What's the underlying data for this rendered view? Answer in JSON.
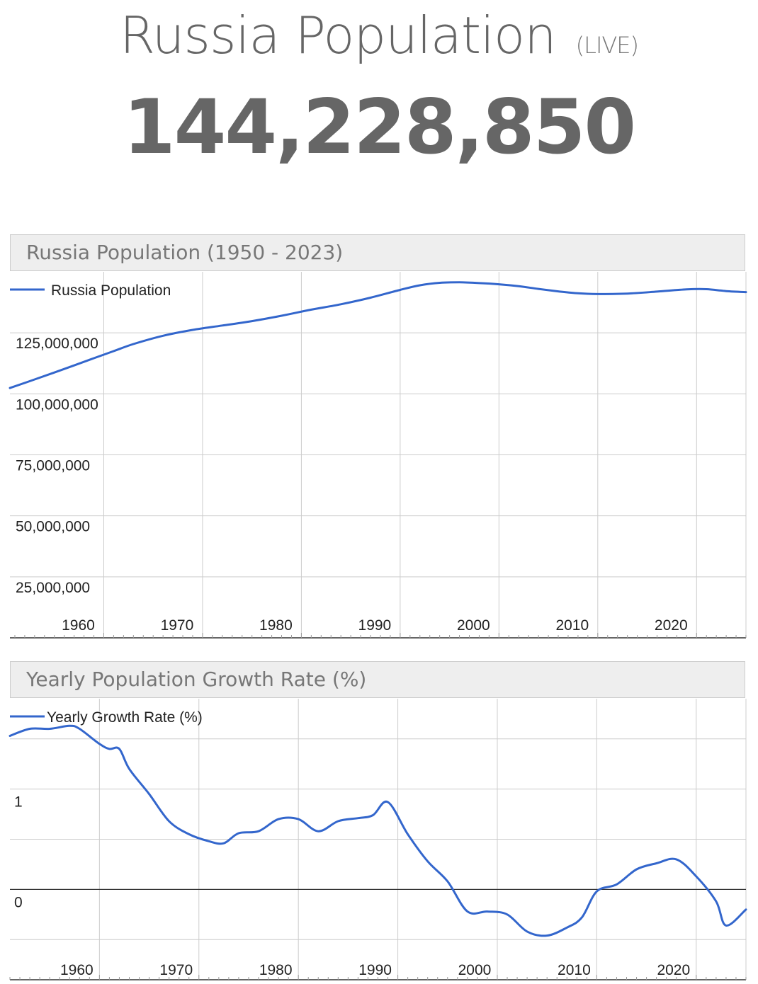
{
  "page": {
    "title": "Russia Population",
    "live_label": "(LIVE)",
    "live_count": "144,228,850"
  },
  "colors": {
    "line": "#3366cc",
    "grid": "#cccccc",
    "axis": "#333333",
    "header_bg": "#eeeeee"
  },
  "chart_data": [
    {
      "type": "line",
      "title": "Russia Population (1950 - 2023)",
      "xlabel": "",
      "ylabel": "",
      "legend": "top-left",
      "grid": true,
      "xlim": [
        1950.5,
        2025
      ],
      "ylim": [
        0,
        150000000
      ],
      "x_ticks": [
        1960,
        1970,
        1980,
        1990,
        2000,
        2010,
        2020
      ],
      "x_tick_labels": [
        "1960",
        "1970",
        "1980",
        "1990",
        "2000",
        "2010",
        "2020"
      ],
      "y_ticks": [
        25000000,
        50000000,
        75000000,
        100000000,
        125000000
      ],
      "y_tick_labels": [
        "25,000,000",
        "50,000,000",
        "75,000,000",
        "100,000,000",
        "125,000,000"
      ],
      "series": [
        {
          "name": "Russia Population",
          "x": [
            1950.5,
            1953,
            1956,
            1959,
            1961,
            1963,
            1966,
            1969,
            1972,
            1975,
            1978,
            1981,
            1984,
            1987,
            1990,
            1992,
            1994,
            1996,
            1998,
            2000,
            2002,
            2004,
            2006,
            2008,
            2010,
            2013,
            2016,
            2019,
            2021,
            2023,
            2025
          ],
          "y": [
            102400000,
            105900000,
            110200000,
            114600000,
            117500000,
            120400000,
            123800000,
            126200000,
            128000000,
            129800000,
            132000000,
            134500000,
            136700000,
            139400000,
            142600000,
            144500000,
            145500000,
            145700000,
            145400000,
            144900000,
            144100000,
            143000000,
            142000000,
            141200000,
            140900000,
            141100000,
            141900000,
            142800000,
            142900000,
            142100000,
            141700000
          ]
        }
      ]
    },
    {
      "type": "line",
      "title": "Yearly Population Growth Rate (%)",
      "xlabel": "",
      "ylabel": "",
      "legend": "top-left",
      "grid": true,
      "xlim": [
        1951,
        2025
      ],
      "ylim": [
        -0.9,
        1.9
      ],
      "x_ticks": [
        1960,
        1970,
        1980,
        1990,
        2000,
        2010,
        2020
      ],
      "x_tick_labels": [
        "1960",
        "1970",
        "1980",
        "1990",
        "2000",
        "2010",
        "2020"
      ],
      "y_ticks": [
        0,
        1
      ],
      "y_tick_labels": [
        "0",
        "1"
      ],
      "series": [
        {
          "name": "Yearly Growth Rate (%)",
          "x": [
            1951,
            1953,
            1955,
            1957,
            1958,
            1960,
            1961,
            1962,
            1963,
            1965,
            1967,
            1969,
            1971,
            1972.5,
            1974,
            1976,
            1978,
            1980,
            1982,
            1984,
            1986,
            1987.5,
            1989,
            1991,
            1993,
            1995,
            1997,
            1999,
            2001,
            2003,
            2005,
            2007,
            2008.5,
            2010,
            2012,
            2014,
            2016,
            2018,
            2020,
            2022,
            2023,
            2025
          ],
          "y": [
            1.53,
            1.6,
            1.6,
            1.63,
            1.6,
            1.45,
            1.4,
            1.4,
            1.2,
            0.95,
            0.68,
            0.55,
            0.48,
            0.46,
            0.56,
            0.58,
            0.7,
            0.7,
            0.58,
            0.68,
            0.71,
            0.74,
            0.87,
            0.55,
            0.28,
            0.08,
            -0.22,
            -0.22,
            -0.25,
            -0.42,
            -0.46,
            -0.38,
            -0.28,
            -0.02,
            0.05,
            0.2,
            0.26,
            0.3,
            0.13,
            -0.12,
            -0.36,
            -0.2
          ]
        }
      ]
    }
  ]
}
